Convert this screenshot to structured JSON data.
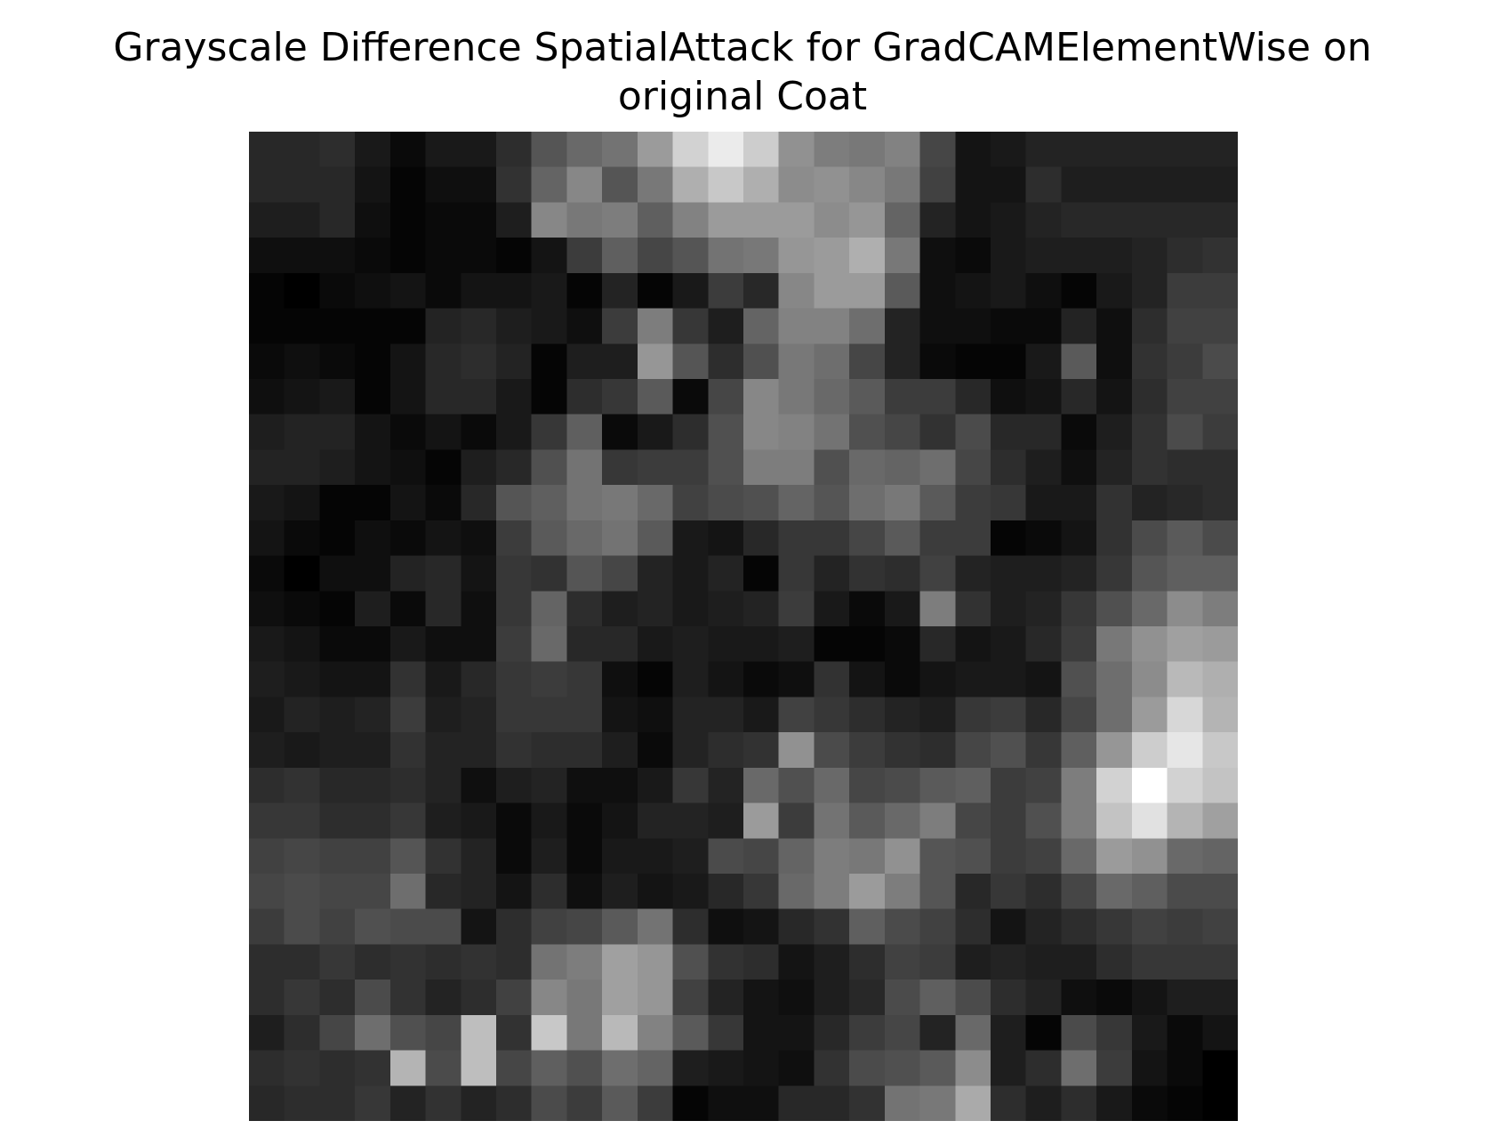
{
  "chart_data": {
    "type": "heatmap",
    "title": "Grayscale Difference SpatialAttack for GradCAMElementWise on\noriginal Coat",
    "xlabel": "",
    "ylabel": "",
    "axes_visible": false,
    "grid": false,
    "colormap": "gray",
    "value_range": [
      0,
      255
    ],
    "rows": 28,
    "cols": 28,
    "values": [
      [
        40,
        40,
        45,
        25,
        10,
        25,
        25,
        45,
        85,
        105,
        115,
        155,
        210,
        235,
        205,
        145,
        125,
        120,
        130,
        70,
        20,
        25,
        35,
        35,
        35,
        35,
        35,
        35
      ],
      [
        40,
        40,
        40,
        20,
        5,
        15,
        15,
        50,
        100,
        135,
        85,
        120,
        175,
        200,
        175,
        140,
        145,
        135,
        120,
        65,
        20,
        20,
        45,
        30,
        30,
        30,
        30,
        30
      ],
      [
        30,
        30,
        40,
        15,
        5,
        10,
        10,
        30,
        135,
        120,
        125,
        95,
        130,
        155,
        155,
        155,
        140,
        150,
        100,
        35,
        20,
        25,
        35,
        40,
        40,
        40,
        40,
        40
      ],
      [
        15,
        15,
        15,
        10,
        5,
        10,
        10,
        5,
        20,
        60,
        95,
        70,
        85,
        115,
        120,
        150,
        155,
        175,
        120,
        15,
        10,
        25,
        30,
        30,
        30,
        35,
        45,
        50
      ],
      [
        5,
        0,
        10,
        15,
        20,
        10,
        20,
        20,
        25,
        5,
        35,
        5,
        25,
        60,
        40,
        135,
        155,
        155,
        90,
        15,
        20,
        25,
        15,
        5,
        25,
        35,
        60,
        60
      ],
      [
        5,
        5,
        5,
        5,
        5,
        35,
        40,
        30,
        25,
        15,
        60,
        125,
        55,
        30,
        100,
        130,
        130,
        110,
        35,
        15,
        15,
        10,
        10,
        35,
        15,
        45,
        65,
        65
      ],
      [
        10,
        15,
        10,
        5,
        20,
        40,
        45,
        35,
        5,
        30,
        30,
        150,
        85,
        45,
        80,
        120,
        110,
        70,
        35,
        10,
        5,
        5,
        25,
        90,
        15,
        50,
        60,
        75
      ],
      [
        15,
        20,
        25,
        5,
        20,
        40,
        40,
        25,
        5,
        45,
        55,
        90,
        10,
        70,
        135,
        120,
        105,
        90,
        60,
        60,
        40,
        15,
        20,
        40,
        20,
        45,
        65,
        65
      ],
      [
        30,
        35,
        35,
        20,
        10,
        20,
        10,
        25,
        55,
        95,
        10,
        25,
        45,
        80,
        135,
        130,
        115,
        80,
        70,
        50,
        75,
        40,
        40,
        10,
        30,
        50,
        75,
        60
      ],
      [
        35,
        35,
        30,
        20,
        15,
        5,
        30,
        40,
        80,
        115,
        55,
        60,
        60,
        80,
        125,
        125,
        80,
        105,
        100,
        110,
        70,
        45,
        30,
        15,
        35,
        50,
        45,
        45
      ],
      [
        25,
        20,
        5,
        5,
        20,
        10,
        40,
        85,
        95,
        115,
        120,
        105,
        65,
        75,
        80,
        100,
        85,
        110,
        120,
        90,
        60,
        55,
        25,
        25,
        50,
        35,
        40,
        45
      ],
      [
        20,
        10,
        5,
        15,
        10,
        20,
        15,
        60,
        90,
        105,
        115,
        90,
        25,
        20,
        40,
        55,
        55,
        70,
        90,
        60,
        60,
        5,
        10,
        20,
        50,
        75,
        90,
        75
      ],
      [
        10,
        0,
        15,
        15,
        35,
        40,
        20,
        55,
        50,
        85,
        70,
        35,
        25,
        35,
        5,
        55,
        35,
        50,
        45,
        65,
        35,
        30,
        30,
        35,
        55,
        85,
        95,
        95
      ],
      [
        15,
        10,
        5,
        30,
        10,
        40,
        15,
        55,
        100,
        45,
        30,
        35,
        25,
        30,
        35,
        60,
        25,
        10,
        25,
        125,
        50,
        30,
        35,
        55,
        80,
        105,
        140,
        125
      ],
      [
        25,
        20,
        10,
        10,
        25,
        15,
        15,
        60,
        105,
        40,
        40,
        25,
        30,
        25,
        25,
        30,
        5,
        5,
        10,
        40,
        20,
        25,
        40,
        60,
        120,
        145,
        160,
        155
      ],
      [
        30,
        25,
        20,
        20,
        50,
        25,
        40,
        55,
        60,
        55,
        15,
        5,
        30,
        20,
        10,
        15,
        50,
        20,
        10,
        20,
        25,
        25,
        20,
        80,
        110,
        140,
        185,
        175
      ],
      [
        25,
        35,
        30,
        35,
        60,
        30,
        35,
        55,
        55,
        55,
        20,
        15,
        35,
        35,
        25,
        65,
        55,
        45,
        35,
        30,
        55,
        60,
        40,
        70,
        110,
        155,
        215,
        180
      ],
      [
        30,
        25,
        30,
        30,
        50,
        35,
        35,
        50,
        45,
        45,
        30,
        10,
        35,
        45,
        50,
        145,
        75,
        60,
        50,
        45,
        70,
        80,
        55,
        95,
        150,
        205,
        230,
        200
      ],
      [
        45,
        50,
        40,
        40,
        45,
        35,
        15,
        30,
        35,
        15,
        15,
        25,
        55,
        35,
        105,
        80,
        105,
        70,
        75,
        90,
        95,
        60,
        65,
        125,
        210,
        255,
        210,
        195
      ],
      [
        55,
        55,
        45,
        45,
        55,
        30,
        25,
        10,
        25,
        10,
        20,
        35,
        35,
        30,
        155,
        60,
        115,
        90,
        105,
        125,
        70,
        60,
        80,
        125,
        195,
        225,
        180,
        160
      ],
      [
        65,
        70,
        65,
        65,
        85,
        50,
        35,
        10,
        30,
        10,
        25,
        25,
        30,
        75,
        70,
        100,
        125,
        120,
        145,
        85,
        80,
        60,
        65,
        105,
        155,
        145,
        105,
        100
      ],
      [
        70,
        75,
        70,
        70,
        110,
        40,
        35,
        20,
        45,
        15,
        30,
        20,
        25,
        40,
        55,
        105,
        125,
        155,
        125,
        85,
        40,
        55,
        45,
        70,
        105,
        95,
        75,
        75
      ],
      [
        60,
        75,
        65,
        80,
        75,
        75,
        20,
        45,
        65,
        70,
        90,
        115,
        45,
        15,
        20,
        40,
        50,
        95,
        75,
        65,
        45,
        20,
        35,
        45,
        55,
        65,
        60,
        65
      ],
      [
        45,
        45,
        55,
        45,
        50,
        45,
        50,
        45,
        115,
        125,
        160,
        150,
        80,
        50,
        45,
        20,
        30,
        45,
        65,
        60,
        30,
        35,
        30,
        30,
        45,
        55,
        55,
        55
      ],
      [
        45,
        55,
        45,
        75,
        50,
        35,
        45,
        65,
        135,
        120,
        160,
        150,
        65,
        35,
        20,
        15,
        30,
        40,
        75,
        95,
        75,
        45,
        35,
        15,
        10,
        20,
        30,
        30
      ],
      [
        30,
        45,
        70,
        110,
        80,
        70,
        190,
        50,
        200,
        120,
        185,
        130,
        90,
        55,
        20,
        20,
        40,
        60,
        70,
        35,
        105,
        30,
        5,
        75,
        55,
        25,
        10,
        20
      ],
      [
        45,
        50,
        45,
        50,
        180,
        75,
        190,
        70,
        95,
        80,
        110,
        100,
        30,
        25,
        20,
        15,
        50,
        75,
        80,
        90,
        140,
        30,
        45,
        110,
        60,
        20,
        10,
        0
      ],
      [
        40,
        45,
        45,
        55,
        35,
        50,
        35,
        45,
        75,
        60,
        90,
        60,
        5,
        15,
        15,
        40,
        40,
        50,
        115,
        120,
        170,
        45,
        30,
        45,
        25,
        10,
        5,
        0
      ]
    ]
  }
}
